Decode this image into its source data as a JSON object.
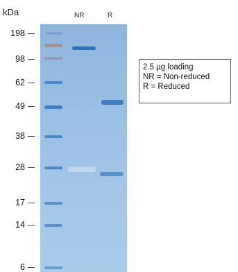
{
  "axis_label": "kDa",
  "lanes": [
    "NR",
    "R"
  ],
  "markers": [
    "198",
    "98",
    "62",
    "49",
    "38",
    "28",
    "17",
    "14",
    "6"
  ],
  "legend": [
    "2.5 µg loading",
    "NR = Non-reduced",
    "R = Reduced"
  ],
  "colors": {
    "gel": "#99bfe4",
    "band": "#3d7fc4",
    "marker_band": "#a58b86"
  }
}
